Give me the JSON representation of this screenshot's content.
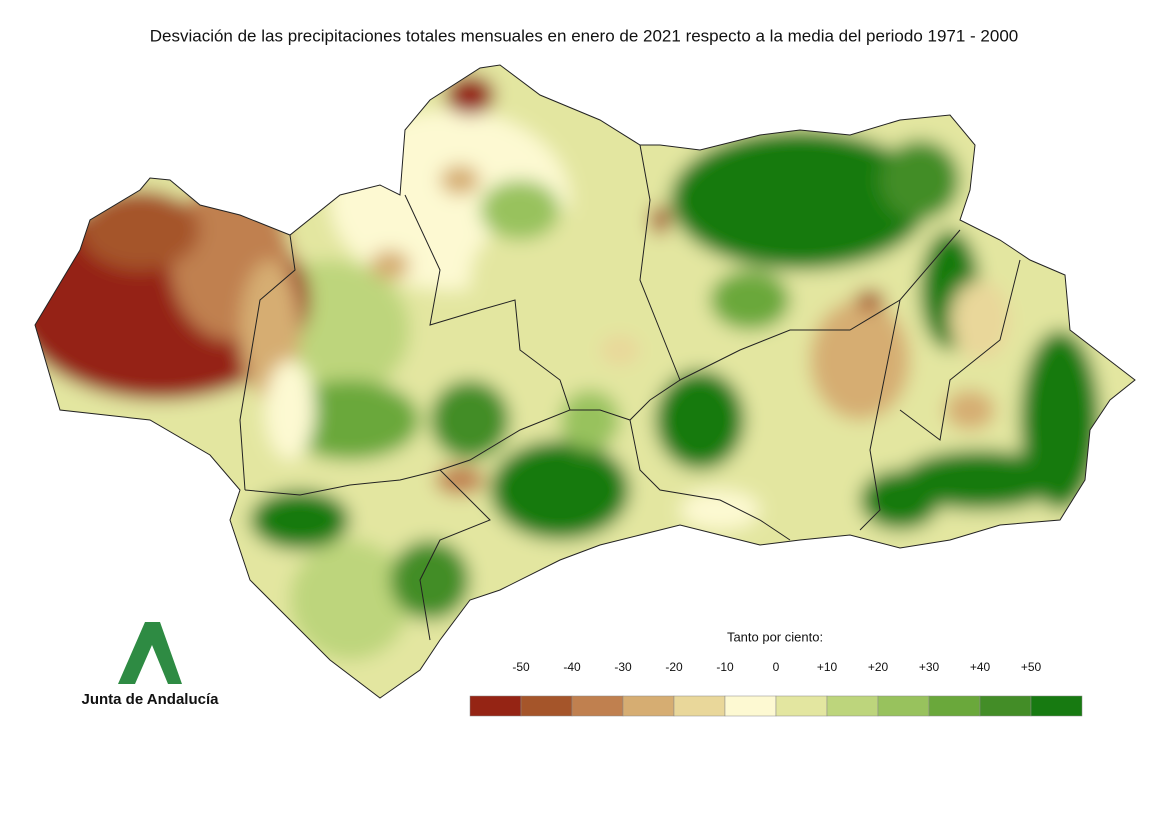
{
  "title": "Desviación de las precipitaciones totales mensuales en enero de 2021 respecto a la media del periodo 1971 - 2000",
  "legend": {
    "title": "Tanto por ciento:",
    "labels": [
      "-50",
      "-40",
      "-30",
      "-20",
      "-10",
      "0",
      "+10",
      "+20",
      "+30",
      "+40",
      "+50"
    ],
    "colors": [
      "#952414",
      "#a5552a",
      "#c0804f",
      "#d6ad72",
      "#e9d79a",
      "#fdf9d2",
      "#e3e6a0",
      "#bdd57c",
      "#98c25d",
      "#6aa83b",
      "#438d27",
      "#177a11"
    ]
  },
  "logo": {
    "text": "Junta de Andalucía"
  }
}
